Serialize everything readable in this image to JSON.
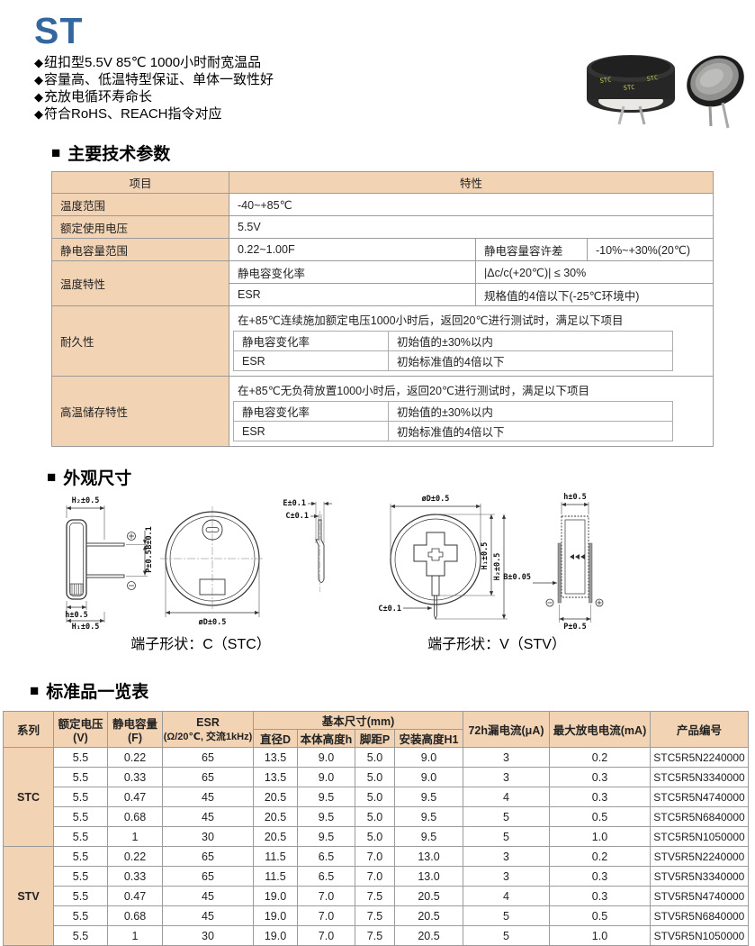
{
  "ui": {
    "bullet_marker": "◆",
    "section_marker": "■"
  },
  "colors": {
    "accent_blue": "#33679e",
    "table_tan": "#f2d3b4",
    "border_gray": "#9b9b9b"
  },
  "header": {
    "title": "ST",
    "features": [
      "纽扣型5.5V 85℃ 1000小时耐宽温品",
      "容量高、低温特型保证、单体一致性好",
      "充放电循环寿命长",
      "符合RoHS、REACH指令对应"
    ]
  },
  "photos": {
    "side_label": "STC"
  },
  "sections": {
    "params": "主要技术参数",
    "outline": "外观尺寸",
    "standard": "标准品一览表"
  },
  "params_table": {
    "col_item": "项目",
    "col_char": "特性",
    "temp_range_label": "温度范围",
    "temp_range_value": "-40~+85℃",
    "voltage_label": "额定使用电压",
    "voltage_value": "5.5V",
    "cap_range_label": "静电容量范围",
    "cap_range_value": "0.22~1.00F",
    "cap_tol_label": "静电容量容许差",
    "cap_tol_value": "-10%~+30%(20℃)",
    "temp_char_label": "温度特性",
    "temp_char_cap_label": "静电容变化率",
    "temp_char_cap_value": "|Δc/c(+20℃)| ≤ 30%",
    "temp_char_esr_label": "ESR",
    "temp_char_esr_value": "规格值的4倍以下(-25℃环境中)",
    "endurance_label": "耐久性",
    "endurance_condition": "在+85℃连续施加额定电压1000小时后，返回20℃进行测试时，满足以下项目",
    "endurance_cap_label": "静电容变化率",
    "endurance_cap_value": "初始值的±30%以内",
    "endurance_esr_label": "ESR",
    "endurance_esr_value": "初始标准值的4倍以下",
    "storage_label": "高温储存特性",
    "storage_condition": "在+85℃无负荷放置1000小时后，返回20℃进行测试时，满足以下项目",
    "storage_cap_label": "静电容变化率",
    "storage_cap_value": "初始值的±30%以内",
    "storage_esr_label": "ESR",
    "storage_esr_value": "初始标准值的4倍以下"
  },
  "outline": {
    "stc": {
      "caption": "端子形状：C（STC）",
      "dims": {
        "h2": "H₂±0.5",
        "b": "B±0.1",
        "p": "P±0.5",
        "h": "h±0.5",
        "h1": "H₁±0.5",
        "e": "E±0.1",
        "c": "C±0.1",
        "d": "øD±0.5"
      },
      "plus": "+",
      "minus": "−"
    },
    "stv": {
      "caption": "端子形状：V（STV）",
      "dims": {
        "d": "øD±0.5",
        "h1": "H₁±0.5",
        "h2": "H₂±0.5",
        "c": "C±0.1",
        "h": "h±0.5",
        "b": "B±0.05",
        "p": "P±0.5"
      },
      "plus": "+",
      "minus": "−"
    }
  },
  "spec_table": {
    "headers": {
      "series": "系列",
      "voltage_l1": "额定电压",
      "voltage_l2": "(V)",
      "capacitance_l1": "静电容量",
      "capacitance_l2": "(F)",
      "esr_l1": "ESR",
      "esr_l2": "(Ω/20℃, 交流1kHz)",
      "dims_group": "基本尺寸(mm)",
      "dim_d": "直径D",
      "dim_h": "本体高度h",
      "dim_p": "脚距P",
      "dim_h1": "安装高度H1",
      "leakage": "72h漏电流(μA)",
      "max_discharge": "最大放电电流(mA)",
      "part_no": "产品编号"
    },
    "groups": [
      {
        "series": "STC",
        "rows": [
          [
            "5.5",
            "0.22",
            "65",
            "13.5",
            "9.0",
            "5.0",
            "9.0",
            "3",
            "0.2",
            "STC5R5N2240000"
          ],
          [
            "5.5",
            "0.33",
            "65",
            "13.5",
            "9.0",
            "5.0",
            "9.0",
            "3",
            "0.3",
            "STC5R5N3340000"
          ],
          [
            "5.5",
            "0.47",
            "45",
            "20.5",
            "9.5",
            "5.0",
            "9.5",
            "4",
            "0.3",
            "STC5R5N4740000"
          ],
          [
            "5.5",
            "0.68",
            "45",
            "20.5",
            "9.5",
            "5.0",
            "9.5",
            "5",
            "0.5",
            "STC5R5N6840000"
          ],
          [
            "5.5",
            "1",
            "30",
            "20.5",
            "9.5",
            "5.0",
            "9.5",
            "5",
            "1.0",
            "STC5R5N1050000"
          ]
        ]
      },
      {
        "series": "STV",
        "rows": [
          [
            "5.5",
            "0.22",
            "65",
            "11.5",
            "6.5",
            "7.0",
            "13.0",
            "3",
            "0.2",
            "STV5R5N2240000"
          ],
          [
            "5.5",
            "0.33",
            "65",
            "11.5",
            "6.5",
            "7.0",
            "13.0",
            "3",
            "0.3",
            "STV5R5N3340000"
          ],
          [
            "5.5",
            "0.47",
            "45",
            "19.0",
            "7.0",
            "7.5",
            "20.5",
            "4",
            "0.3",
            "STV5R5N4740000"
          ],
          [
            "5.5",
            "0.68",
            "45",
            "19.0",
            "7.0",
            "7.5",
            "20.5",
            "5",
            "0.5",
            "STV5R5N6840000"
          ],
          [
            "5.5",
            "1",
            "30",
            "19.0",
            "7.0",
            "7.5",
            "20.5",
            "5",
            "1.0",
            "STV5R5N1050000"
          ]
        ]
      }
    ]
  }
}
